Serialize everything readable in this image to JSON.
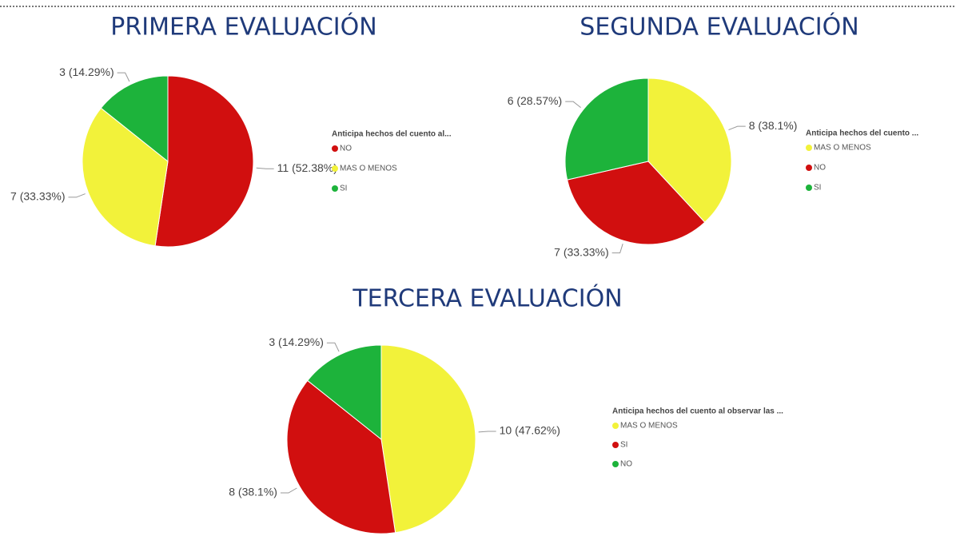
{
  "chart_data": [
    {
      "type": "pie",
      "title": "PRIMERA EVALUACIÓN",
      "legend_title": "Anticipa hechos del cuento al...",
      "categories": [
        "NO",
        "MAS O MENOS",
        "SI"
      ],
      "values": [
        11,
        7,
        3
      ],
      "value_labels": [
        "11 (52.38%)",
        "7 (33.33%)",
        "3 (14.29%)"
      ],
      "colors": [
        "#d10f0f",
        "#f2f23a",
        "#1db33b"
      ]
    },
    {
      "type": "pie",
      "title": "SEGUNDA EVALUACIÓN",
      "legend_title": "Anticipa hechos del cuento ...",
      "categories": [
        "MAS O MENOS",
        "NO",
        "SI"
      ],
      "values": [
        8,
        7,
        6
      ],
      "value_labels": [
        "8 (38.1%)",
        "7 (33.33%)",
        "6 (28.57%)"
      ],
      "colors": [
        "#f2f23a",
        "#d10f0f",
        "#1db33b"
      ]
    },
    {
      "type": "pie",
      "title": "TERCERA EVALUACIÓN",
      "legend_title": "Anticipa hechos del cuento al observar las ...",
      "categories": [
        "MAS O MENOS",
        "SI",
        "NO"
      ],
      "values": [
        10,
        8,
        3
      ],
      "value_labels": [
        "10 (47.62%)",
        "8 (38.1%)",
        "3 (14.29%)"
      ],
      "colors": [
        "#f2f23a",
        "#d10f0f",
        "#1db33b"
      ]
    }
  ]
}
